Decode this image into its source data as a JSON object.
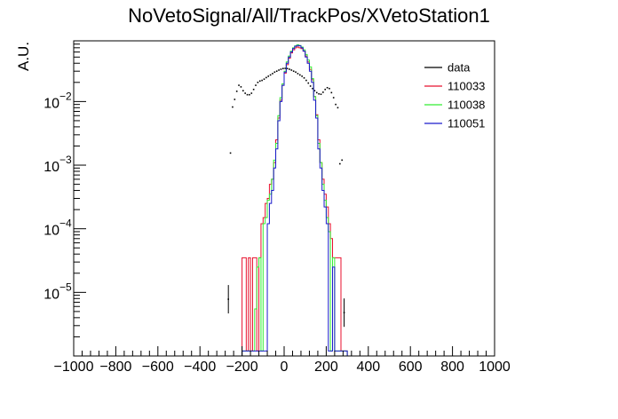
{
  "chart_data": {
    "type": "line",
    "title": "NoVetoSignal/All/TrackPos/XVetoStation1",
    "xlabel": "",
    "ylabel": "A.U.",
    "xlim": [
      -1000,
      1000
    ],
    "ylim": [
      1e-06,
      0.09
    ],
    "yscale": "log",
    "grid": false,
    "legend_position": "top-right",
    "x_ticks": [
      -1000,
      -800,
      -600,
      -400,
      -200,
      0,
      200,
      400,
      600,
      800,
      1000
    ],
    "x_tick_labels": [
      "−1000",
      "−800",
      "−600",
      "−400",
      "−200",
      "0",
      "200",
      "400",
      "600",
      "800",
      "1000"
    ],
    "y_ticks": [
      1e-05,
      0.0001,
      0.001,
      0.01
    ],
    "y_tick_labels": [
      {
        "base": "10",
        "exp": "−5"
      },
      {
        "base": "10",
        "exp": "−4"
      },
      {
        "base": "10",
        "exp": "−3"
      },
      {
        "base": "10",
        "exp": "−2"
      }
    ],
    "bin_width": 10,
    "series": [
      {
        "name": "data",
        "style": "markers",
        "color": "#000000",
        "points": [
          [
            -265,
            7.8e-06
          ],
          [
            -255,
            0.00155
          ],
          [
            -245,
            0.0082
          ],
          [
            -235,
            0.0108
          ],
          [
            -225,
            0.0145
          ],
          [
            -215,
            0.018
          ],
          [
            -205,
            0.017
          ],
          [
            -195,
            0.0148
          ],
          [
            -185,
            0.0135
          ],
          [
            -175,
            0.0128
          ],
          [
            -165,
            0.0128
          ],
          [
            -155,
            0.0135
          ],
          [
            -145,
            0.0155
          ],
          [
            -135,
            0.018
          ],
          [
            -125,
            0.02
          ],
          [
            -115,
            0.021
          ],
          [
            -105,
            0.0215
          ],
          [
            -95,
            0.0225
          ],
          [
            -85,
            0.0238
          ],
          [
            -75,
            0.025
          ],
          [
            -65,
            0.0262
          ],
          [
            -55,
            0.0275
          ],
          [
            -45,
            0.029
          ],
          [
            -35,
            0.03
          ],
          [
            -25,
            0.0312
          ],
          [
            -15,
            0.0322
          ],
          [
            -5,
            0.033
          ],
          [
            5,
            0.0332
          ],
          [
            15,
            0.033
          ],
          [
            25,
            0.0322
          ],
          [
            35,
            0.0312
          ],
          [
            45,
            0.03
          ],
          [
            55,
            0.029
          ],
          [
            65,
            0.0275
          ],
          [
            75,
            0.0262
          ],
          [
            85,
            0.025
          ],
          [
            95,
            0.0235
          ],
          [
            105,
            0.0215
          ],
          [
            115,
            0.0195
          ],
          [
            125,
            0.0175
          ],
          [
            135,
            0.016
          ],
          [
            145,
            0.0148
          ],
          [
            155,
            0.0138
          ],
          [
            165,
            0.0132
          ],
          [
            175,
            0.013
          ],
          [
            185,
            0.014
          ],
          [
            195,
            0.0155
          ],
          [
            205,
            0.0165
          ],
          [
            215,
            0.016
          ],
          [
            225,
            0.0138
          ],
          [
            235,
            0.0115
          ],
          [
            245,
            0.009
          ],
          [
            255,
            0.008
          ],
          [
            265,
            0.00105
          ],
          [
            275,
            0.0012
          ],
          [
            285,
            4.8e-06
          ]
        ]
      },
      {
        "name": "110033",
        "style": "step",
        "color": "#e8112d",
        "start": -200,
        "values": [
          3.5e-05,
          3.5e-05,
          1.2e-06,
          3.5e-05,
          1.2e-06,
          3.5e-05,
          3.5e-05,
          1.2e-06,
          3.5e-05,
          0.00012,
          0.00015,
          0.00025,
          0.0003,
          0.0005,
          0.0006,
          0.0011,
          0.0025,
          0.0055,
          0.0105,
          0.018,
          0.028,
          0.038,
          0.048,
          0.058,
          0.065,
          0.07,
          0.072,
          0.07,
          0.068,
          0.062,
          0.052,
          0.042,
          0.032,
          0.022,
          0.012,
          0.0062,
          0.0025,
          0.0011,
          0.0006,
          0.00035,
          0.00022,
          0.00012,
          7e-05,
          3.5e-05,
          3.5e-05,
          3.5e-05,
          3.5e-05,
          1.2e-06,
          1.2e-06,
          1.2e-06
        ]
      },
      {
        "name": "110038",
        "style": "step",
        "color": "#33ee33",
        "start": -200,
        "values": [
          1.2e-06,
          1.2e-06,
          1.2e-06,
          1.2e-06,
          1.2e-06,
          1.2e-06,
          5.5e-06,
          2.5e-05,
          3.5e-05,
          1.2e-06,
          0.00012,
          0.00015,
          0.00028,
          0.00035,
          0.0006,
          0.0012,
          0.0022,
          0.006,
          0.0115,
          0.019,
          0.03,
          0.042,
          0.052,
          0.062,
          0.07,
          0.075,
          0.078,
          0.076,
          0.072,
          0.065,
          0.055,
          0.045,
          0.035,
          0.023,
          0.012,
          0.006,
          0.0022,
          0.0011,
          0.0005,
          0.00028,
          0.00015,
          9e-05,
          1.2e-06,
          3.5e-05,
          1.2e-06,
          1.2e-06,
          1.2e-06,
          1.2e-06,
          1.2e-06,
          1.2e-06
        ]
      },
      {
        "name": "110051",
        "style": "step",
        "color": "#1a1acc",
        "start": -200,
        "values": [
          1.2e-06,
          1.2e-06,
          1.2e-06,
          1.2e-06,
          1.2e-06,
          1.2e-06,
          1.2e-06,
          1.2e-06,
          1.2e-06,
          1.2e-06,
          1.2e-06,
          1.2e-06,
          0.00012,
          0.00025,
          0.0004,
          0.0009,
          0.0018,
          0.005,
          0.01,
          0.018,
          0.029,
          0.04,
          0.05,
          0.06,
          0.068,
          0.074,
          0.076,
          0.075,
          0.07,
          0.062,
          0.05,
          0.04,
          0.03,
          0.02,
          0.0105,
          0.0055,
          0.0018,
          0.0009,
          0.0004,
          0.00022,
          0.00012,
          1.2e-06,
          1.2e-06,
          2.5e-05,
          1.2e-06,
          1.2e-06,
          1.2e-06,
          1.2e-06,
          1.2e-06,
          1.2e-06
        ]
      }
    ]
  }
}
